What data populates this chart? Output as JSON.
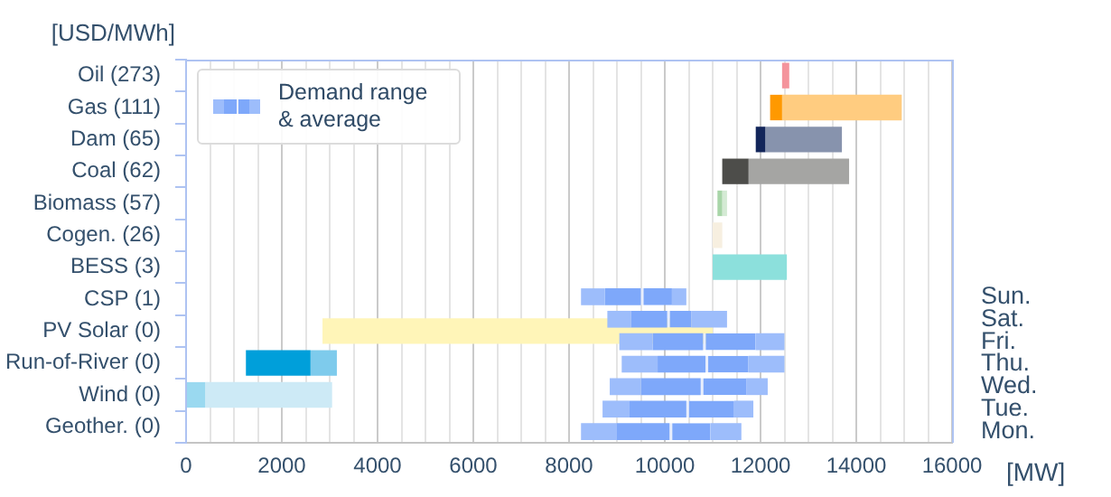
{
  "chart_data": [
    {
      "type": "bar",
      "orientation": "horizontal",
      "ylabel": "[USD/MWh]",
      "xlabel": "[MW]",
      "categories": [
        "Oil (273)",
        "Gas (111)",
        "Dam (65)",
        "Coal (62)",
        "Biomass (57)",
        "Cogen. (26)",
        "BESS (3)",
        "CSP (1)",
        "PV Solar (0)",
        "Run-of-River (0)",
        "Wind (0)",
        "Geother. (0)"
      ],
      "series": [
        {
          "base": [
            null,
            12200,
            11900,
            11200,
            11100,
            null,
            null,
            null,
            null,
            1250,
            0,
            null
          ],
          "colors": [
            null,
            "#ff9900",
            "#13265a",
            "#4d4d4a",
            "#a8d5a8",
            null,
            null,
            null,
            null,
            "#009fda",
            "#9ad9f0",
            null
          ],
          "values": [
            null,
            250,
            200,
            550,
            100,
            null,
            null,
            null,
            null,
            1350,
            400,
            null
          ]
        },
        {
          "base": [
            12450,
            12450,
            12100,
            11750,
            11200,
            11000,
            11000,
            null,
            2850,
            2600,
            400,
            null
          ],
          "colors": [
            "#f4949c",
            "#ffcc80",
            "#8793ad",
            "#a5a5a3",
            "#d4ead4",
            "#f7efe0",
            "#8ce0dc",
            null,
            "#fff5b8",
            "#7ecbec",
            "#cdeaf6",
            null
          ],
          "values": [
            150,
            2500,
            1600,
            2100,
            100,
            200,
            1550,
            null,
            8150,
            550,
            2650,
            null
          ]
        }
      ],
      "xlim": [
        0,
        16000
      ],
      "xticks": [
        0,
        {
          "value": 500,
          "label": null
        },
        {
          "value": 1000,
          "label": null
        },
        {
          "value": 1500,
          "label": null
        },
        2000,
        {
          "value": 2500,
          "label": null
        },
        {
          "value": 3000,
          "label": null
        },
        {
          "value": 3500,
          "label": null
        },
        4000,
        {
          "value": 4500,
          "label": null
        },
        {
          "value": 5000,
          "label": null
        },
        {
          "value": 5500,
          "label": null
        },
        6000,
        {
          "value": 6500,
          "label": null
        },
        {
          "value": 7000,
          "label": null
        },
        {
          "value": 7500,
          "label": null
        },
        8000,
        {
          "value": 8500,
          "label": null
        },
        {
          "value": 9000,
          "label": null
        },
        {
          "value": 9500,
          "label": null
        },
        10000,
        {
          "value": 10500,
          "label": null
        },
        {
          "value": 11000,
          "label": null
        },
        {
          "value": 11500,
          "label": null
        },
        12000,
        {
          "value": 12500,
          "label": null
        },
        {
          "value": 13000,
          "label": null
        },
        {
          "value": 13500,
          "label": null
        },
        14000,
        {
          "value": 14500,
          "label": null
        },
        {
          "value": 15000,
          "label": null
        },
        {
          "value": 15500,
          "label": null
        },
        16000
      ],
      "grid": "x",
      "legend": false
    },
    {
      "type": "bar",
      "orientation": "horizontal",
      "categories": [
        "Sun.",
        "Sat.",
        "Fri.",
        "Thu.",
        "Wed.",
        "Tue.",
        "Mon."
      ],
      "series": [
        {
          "name": "Demand range & average",
          "color": "#9dbdfb",
          "base": [
            8250,
            8800,
            9050,
            9100,
            8850,
            8700,
            8250
          ],
          "values": [
            500,
            500,
            700,
            750,
            650,
            550,
            750
          ]
        },
        {
          "color": "#7ea8fa",
          "base": [
            8750,
            9300,
            9750,
            9850,
            9500,
            9250,
            9000
          ],
          "values": [
            750,
            750,
            1050,
            1000,
            1250,
            1200,
            1100
          ]
        },
        {
          "color": "#7ea8fa",
          "base": [
            9500,
            10050,
            10800,
            10850,
            10750,
            10450,
            10100
          ],
          "values": [
            650,
            500,
            1100,
            900,
            950,
            1000,
            850
          ]
        },
        {
          "color": "#9dbdfb",
          "base": [
            10150,
            10550,
            11900,
            11750,
            11700,
            11450,
            10950
          ],
          "values": [
            300,
            750,
            600,
            750,
            450,
            400,
            650
          ]
        }
      ],
      "xlim": [
        0,
        16000
      ],
      "tick_labels": "y",
      "grid": false,
      "legend": "top left"
    }
  ]
}
